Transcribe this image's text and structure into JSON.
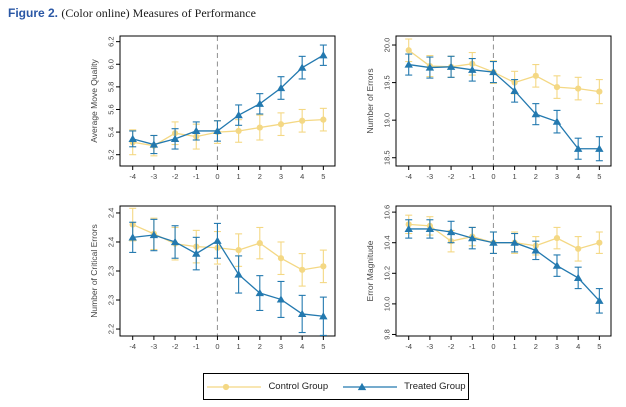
{
  "figure": {
    "label": "Figure 2.",
    "caption": "(Color online) Measures of Performance"
  },
  "colors": {
    "control": "#F4D884",
    "treated": "#2379AF",
    "dashed_line": "#9A9A9A",
    "axis": "#000000",
    "tick_text": "#454545"
  },
  "legend": {
    "items": [
      {
        "key": "control",
        "label": "Control Group",
        "marker": "circle"
      },
      {
        "key": "treated",
        "label": "Treated Group",
        "marker": "triangle"
      }
    ]
  },
  "chart_data": {
    "type": "line",
    "xlabel": "",
    "x": [
      -4,
      -3,
      -2,
      -1,
      0,
      1,
      2,
      3,
      4,
      5
    ],
    "xtick_labels": [
      "-4",
      "-3",
      "-2",
      "-1",
      "0",
      "1",
      "2",
      "3",
      "4",
      "5"
    ],
    "xlim": [
      -4.6,
      5.55
    ],
    "reference_line_x": 0,
    "grid": false,
    "legend_position": "bottom-center",
    "charts": [
      {
        "title": "",
        "ylabel": "Average Move Quality",
        "ylim": [
          5.1,
          6.25
        ],
        "yticks": [
          5.2,
          5.4,
          5.6,
          5.8,
          6.0,
          6.2
        ],
        "ytick_labels": [
          "5.2",
          "5.4",
          "5.6",
          "5.8",
          "6.0",
          "6.2"
        ],
        "series": [
          {
            "name": "Control Group",
            "key": "control",
            "marker": "circle",
            "values": [
              5.31,
              5.28,
              5.39,
              5.36,
              5.4,
              5.41,
              5.44,
              5.47,
              5.5,
              5.51
            ],
            "err": [
              0.11,
              0.09,
              0.1,
              0.11,
              0.1,
              0.1,
              0.11,
              0.1,
              0.1,
              0.1
            ]
          },
          {
            "name": "Treated Group",
            "key": "treated",
            "marker": "triangle",
            "values": [
              5.34,
              5.29,
              5.34,
              5.41,
              5.41,
              5.55,
              5.65,
              5.79,
              5.97,
              6.08
            ],
            "err": [
              0.07,
              0.08,
              0.09,
              0.08,
              0.09,
              0.09,
              0.09,
              0.1,
              0.1,
              0.09
            ]
          }
        ]
      },
      {
        "title": "",
        "ylabel": "Number of Errors",
        "ylim": [
          18.39,
          20.12
        ],
        "yticks": [
          18.5,
          19.0,
          19.5,
          20.0
        ],
        "ytick_labels": [
          "18.5",
          "19.0",
          "19.5",
          "20.0"
        ],
        "series": [
          {
            "name": "Control Group",
            "key": "control",
            "marker": "circle",
            "values": [
              19.93,
              19.72,
              19.71,
              19.75,
              19.64,
              19.5,
              19.59,
              19.44,
              19.42,
              19.38
            ],
            "err": [
              0.15,
              0.14,
              0.14,
              0.15,
              0.15,
              0.15,
              0.15,
              0.15,
              0.15,
              0.16
            ]
          },
          {
            "name": "Treated Group",
            "key": "treated",
            "marker": "triangle",
            "values": [
              19.74,
              19.7,
              19.71,
              19.67,
              19.64,
              19.39,
              19.08,
              18.98,
              18.62,
              18.62
            ],
            "err": [
              0.14,
              0.14,
              0.14,
              0.15,
              0.14,
              0.15,
              0.14,
              0.15,
              0.14,
              0.16
            ]
          }
        ]
      },
      {
        "title": "",
        "ylabel": "Number of Critical Errors",
        "ylim": [
          2.238,
          2.462
        ],
        "yticks": [
          2.25,
          2.3,
          2.35,
          2.4,
          2.45
        ],
        "ytick_labels": [
          "2.2",
          "2.3",
          "2.3",
          "2.4",
          "2.4"
        ],
        "series": [
          {
            "name": "Control Group",
            "key": "control",
            "marker": "circle",
            "values": [
              2.43,
              2.414,
              2.397,
              2.392,
              2.39,
              2.386,
              2.398,
              2.372,
              2.352,
              2.358
            ],
            "err": [
              0.028,
              0.027,
              0.028,
              0.028,
              0.028,
              0.028,
              0.027,
              0.028,
              0.028,
              0.028
            ]
          },
          {
            "name": "Treated Group",
            "key": "treated",
            "marker": "triangle",
            "values": [
              2.408,
              2.412,
              2.4,
              2.38,
              2.402,
              2.344,
              2.312,
              2.301,
              2.276,
              2.272
            ],
            "err": [
              0.026,
              0.027,
              0.028,
              0.028,
              0.03,
              0.032,
              0.03,
              0.031,
              0.032,
              0.033
            ]
          }
        ]
      },
      {
        "title": "",
        "ylabel": "Error Magnitude",
        "ylim": [
          9.79,
          10.64
        ],
        "yticks": [
          9.8,
          10.0,
          10.2,
          10.4,
          10.6
        ],
        "ytick_labels": [
          "9.8",
          "10.0",
          "10.2",
          "10.4",
          "10.6"
        ],
        "series": [
          {
            "name": "Control Group",
            "key": "control",
            "marker": "circle",
            "values": [
              10.52,
              10.51,
              10.41,
              10.44,
              10.4,
              10.4,
              10.38,
              10.43,
              10.36,
              10.4
            ],
            "err": [
              0.06,
              0.06,
              0.07,
              0.06,
              0.07,
              0.07,
              0.06,
              0.07,
              0.08,
              0.07
            ]
          },
          {
            "name": "Treated Group",
            "key": "treated",
            "marker": "triangle",
            "values": [
              10.49,
              10.49,
              10.47,
              10.43,
              10.4,
              10.4,
              10.35,
              10.25,
              10.17,
              10.02
            ],
            "err": [
              0.06,
              0.06,
              0.07,
              0.07,
              0.07,
              0.06,
              0.06,
              0.07,
              0.07,
              0.08
            ]
          }
        ]
      }
    ]
  }
}
